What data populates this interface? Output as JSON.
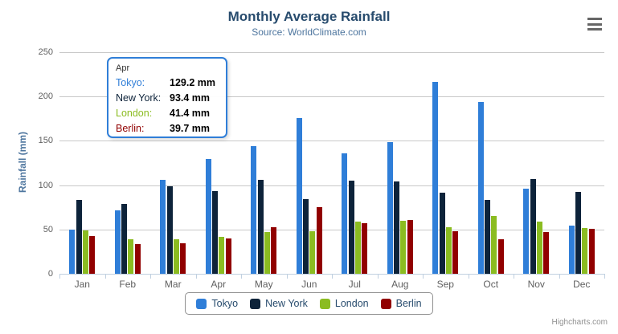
{
  "chart_data": {
    "type": "bar",
    "title": "Monthly Average Rainfall",
    "subtitle": "Source: WorldClimate.com",
    "categories": [
      "Jan",
      "Feb",
      "Mar",
      "Apr",
      "May",
      "Jun",
      "Jul",
      "Aug",
      "Sep",
      "Oct",
      "Nov",
      "Dec"
    ],
    "series": [
      {
        "name": "Tokyo",
        "color": "#2f7ed8",
        "values": [
          49.9,
          71.5,
          106.4,
          129.2,
          144.0,
          176.0,
          135.6,
          148.5,
          216.4,
          194.1,
          95.6,
          54.4
        ]
      },
      {
        "name": "New York",
        "color": "#0d233a",
        "values": [
          83.6,
          78.8,
          98.5,
          93.4,
          106.0,
          84.5,
          105.0,
          104.3,
          91.2,
          83.5,
          106.6,
          92.3
        ]
      },
      {
        "name": "London",
        "color": "#8bbc21",
        "values": [
          48.9,
          38.8,
          39.3,
          41.4,
          47.0,
          48.3,
          59.0,
          59.6,
          52.4,
          65.2,
          59.3,
          51.2
        ]
      },
      {
        "name": "Berlin",
        "color": "#910000",
        "values": [
          42.4,
          33.2,
          34.5,
          39.7,
          52.6,
          75.5,
          57.4,
          60.4,
          47.6,
          39.1,
          46.8,
          51.1
        ]
      }
    ],
    "xlabel": "",
    "ylabel": "Rainfall (mm)",
    "ylim": [
      0,
      250
    ],
    "yticks": [
      0,
      50,
      100,
      150,
      200,
      250
    ],
    "grid": true,
    "legend_position": "bottom"
  },
  "tooltip": {
    "header": "Apr",
    "rows": [
      {
        "label": "Tokyo:",
        "value": "129.2 mm"
      },
      {
        "label": "New York:",
        "value": "93.4 mm"
      },
      {
        "label": "London:",
        "value": "41.4 mm"
      },
      {
        "label": "Berlin:",
        "value": "39.7 mm"
      }
    ]
  },
  "colors": {
    "title": "#274b6d",
    "subtitle": "#4d759e",
    "axis_labels": "#606060",
    "gridline": "#c8c8c8",
    "axis_line": "#c0d0e0",
    "tooltip_border": "#2f7ed8"
  },
  "credits": "Highcharts.com"
}
